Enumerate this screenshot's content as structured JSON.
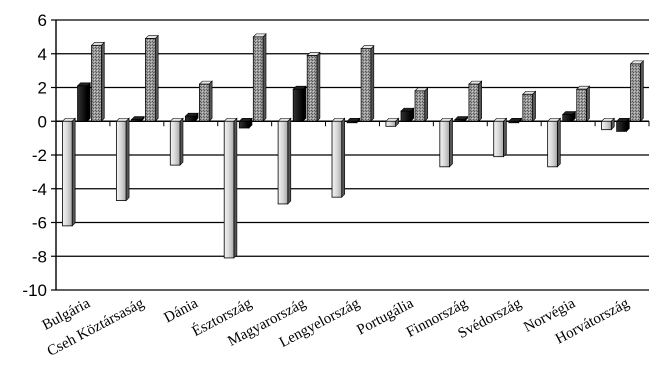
{
  "chart_data": {
    "type": "bar",
    "title": "",
    "xlabel": "",
    "ylabel": "",
    "ylim": [
      -10,
      6
    ],
    "yticks": [
      6,
      4,
      2,
      0,
      -2,
      -4,
      -6,
      -8,
      -10
    ],
    "grid": true,
    "legend": "none",
    "categories": [
      "Bulgária",
      "Cseh Köztársaság",
      "Dánia",
      "Észtország",
      "Magyarország",
      "Lengyelország",
      "Portugália",
      "Finnország",
      "Svédország",
      "Norvégia",
      "Horvátország"
    ],
    "series": [
      {
        "color": "#d4d4d4",
        "values": [
          -6.2,
          -4.7,
          -2.6,
          -8.1,
          -4.9,
          -4.5,
          -0.3,
          -2.7,
          -2.1,
          -2.7,
          -0.5
        ]
      },
      {
        "color": "#111111",
        "values": [
          2.1,
          0.1,
          0.3,
          -0.4,
          1.9,
          0.0,
          0.6,
          0.1,
          0.0,
          0.4,
          -0.6
        ]
      },
      {
        "color": "#8a8a8a",
        "values": [
          4.5,
          4.9,
          2.2,
          5.0,
          3.9,
          4.3,
          1.8,
          2.2,
          1.6,
          1.9,
          3.4
        ]
      }
    ]
  }
}
